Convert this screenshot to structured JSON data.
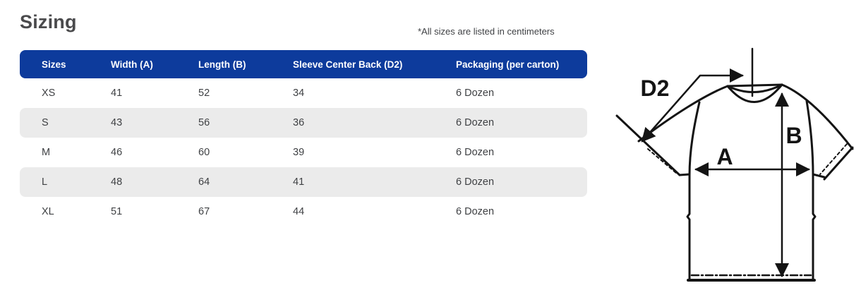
{
  "title": "Sizing",
  "note": "*All sizes are listed in centimeters",
  "table": {
    "columns": [
      "Sizes",
      "Width (A)",
      "Length (B)",
      "Sleeve Center Back (D2)",
      "Packaging (per carton)"
    ],
    "rows": [
      [
        "XS",
        "41",
        "52",
        "34",
        "6 Dozen"
      ],
      [
        "S",
        "43",
        "56",
        "36",
        "6 Dozen"
      ],
      [
        "M",
        "46",
        "60",
        "39",
        "6 Dozen"
      ],
      [
        "L",
        "48",
        "64",
        "41",
        "6 Dozen"
      ],
      [
        "XL",
        "51",
        "67",
        "44",
        "6 Dozen"
      ]
    ]
  },
  "diagram": {
    "labels": {
      "sleeve_center_back": "D2",
      "width": "A",
      "length": "B"
    }
  },
  "colors": {
    "header_bg": "#0d3b9c",
    "header_text": "#ffffff",
    "row_alt": "#ebebeb",
    "cell_text": "#3f4144",
    "title_text": "#4a4a4c",
    "note_text": "#3f4144",
    "diagram_ink": "#141414"
  }
}
